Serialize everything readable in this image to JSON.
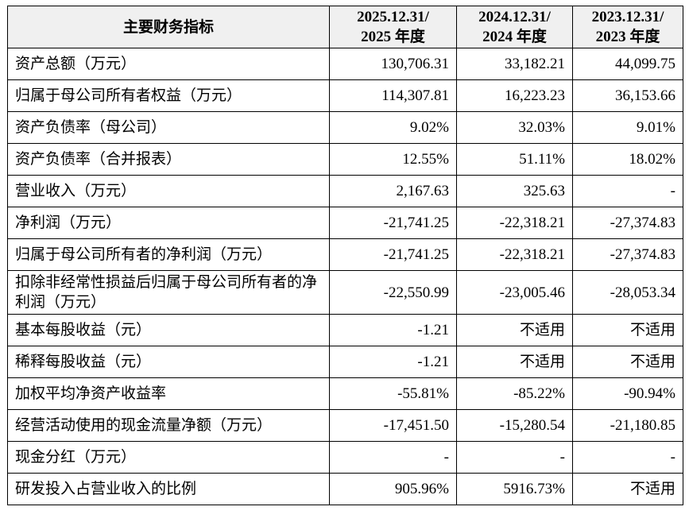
{
  "table": {
    "header": [
      "主要财务指标",
      [
        "2025.12.31/",
        "2025 年度"
      ],
      [
        "2024.12.31/",
        "2024 年度"
      ],
      [
        "2023.12.31/",
        "2023 年度"
      ]
    ],
    "rows": [
      [
        "资产总额（万元）",
        "130,706.31",
        "33,182.21",
        "44,099.75"
      ],
      [
        "归属于母公司所有者权益（万元）",
        "114,307.81",
        "16,223.23",
        "36,153.66"
      ],
      [
        "资产负债率（母公司）",
        "9.02%",
        "32.03%",
        "9.01%"
      ],
      [
        "资产负债率（合并报表）",
        "12.55%",
        "51.11%",
        "18.02%"
      ],
      [
        "营业收入（万元）",
        "2,167.63",
        "325.63",
        "-"
      ],
      [
        "净利润（万元）",
        "-21,741.25",
        "-22,318.21",
        "-27,374.83"
      ],
      [
        "归属于母公司所有者的净利润（万元）",
        "-21,741.25",
        "-22,318.21",
        "-27,374.83"
      ],
      [
        "扣除非经常性损益后归属于母公司所有者的净利润（万元）",
        "-22,550.99",
        "-23,005.46",
        "-28,053.34"
      ],
      [
        "基本每股收益（元）",
        "-1.21",
        "不适用",
        "不适用"
      ],
      [
        "稀释每股收益（元）",
        "-1.21",
        "不适用",
        "不适用"
      ],
      [
        "加权平均净资产收益率",
        "-55.81%",
        "-85.22%",
        "-90.94%"
      ],
      [
        "经营活动使用的现金流量净额（万元）",
        "-17,451.50",
        "-15,280.54",
        "-21,180.85"
      ],
      [
        "现金分红（万元）",
        "-",
        "-",
        "-"
      ],
      [
        "研发投入占营业收入的比例",
        "905.96%",
        "5916.73%",
        "不适用"
      ]
    ]
  }
}
